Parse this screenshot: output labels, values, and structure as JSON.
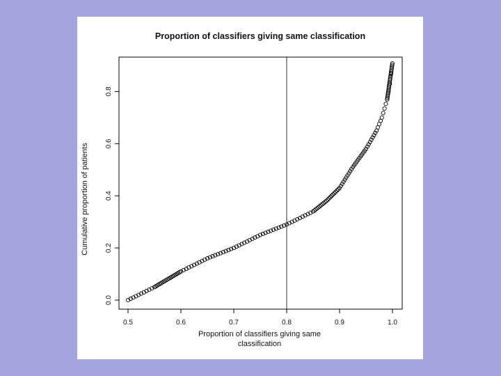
{
  "chart_data": {
    "type": "scatter",
    "title": "Proportion of classifiers giving same classification",
    "xlabel_lines": [
      "Proportion of classifiers giving same",
      "classification"
    ],
    "ylabel": "Cumulative proportion of patients",
    "xlim": [
      0.5,
      1.0
    ],
    "ylim": [
      0.0,
      0.9
    ],
    "x_ticks": [
      0.5,
      0.6,
      0.7,
      0.8,
      0.9,
      1.0
    ],
    "x_tick_labels": [
      "0.5",
      "0.6",
      "0.7",
      "0.8",
      "0.9",
      "1.0"
    ],
    "y_ticks": [
      0.0,
      0.2,
      0.4,
      0.6,
      0.8
    ],
    "y_tick_labels": [
      "0.0",
      "0.2",
      "0.4",
      "0.6",
      "0.8"
    ],
    "vline_x": 0.8,
    "grid": false,
    "curve_points": [
      [
        0.5,
        0.0
      ],
      [
        0.55,
        0.05
      ],
      [
        0.6,
        0.11
      ],
      [
        0.65,
        0.16
      ],
      [
        0.7,
        0.2
      ],
      [
        0.75,
        0.25
      ],
      [
        0.8,
        0.29
      ],
      [
        0.85,
        0.34
      ],
      [
        0.875,
        0.38
      ],
      [
        0.9,
        0.43
      ],
      [
        0.925,
        0.51
      ],
      [
        0.95,
        0.58
      ],
      [
        0.97,
        0.65
      ],
      [
        0.98,
        0.7
      ],
      [
        0.99,
        0.77
      ],
      [
        0.995,
        0.83
      ],
      [
        1.0,
        0.91
      ]
    ]
  }
}
